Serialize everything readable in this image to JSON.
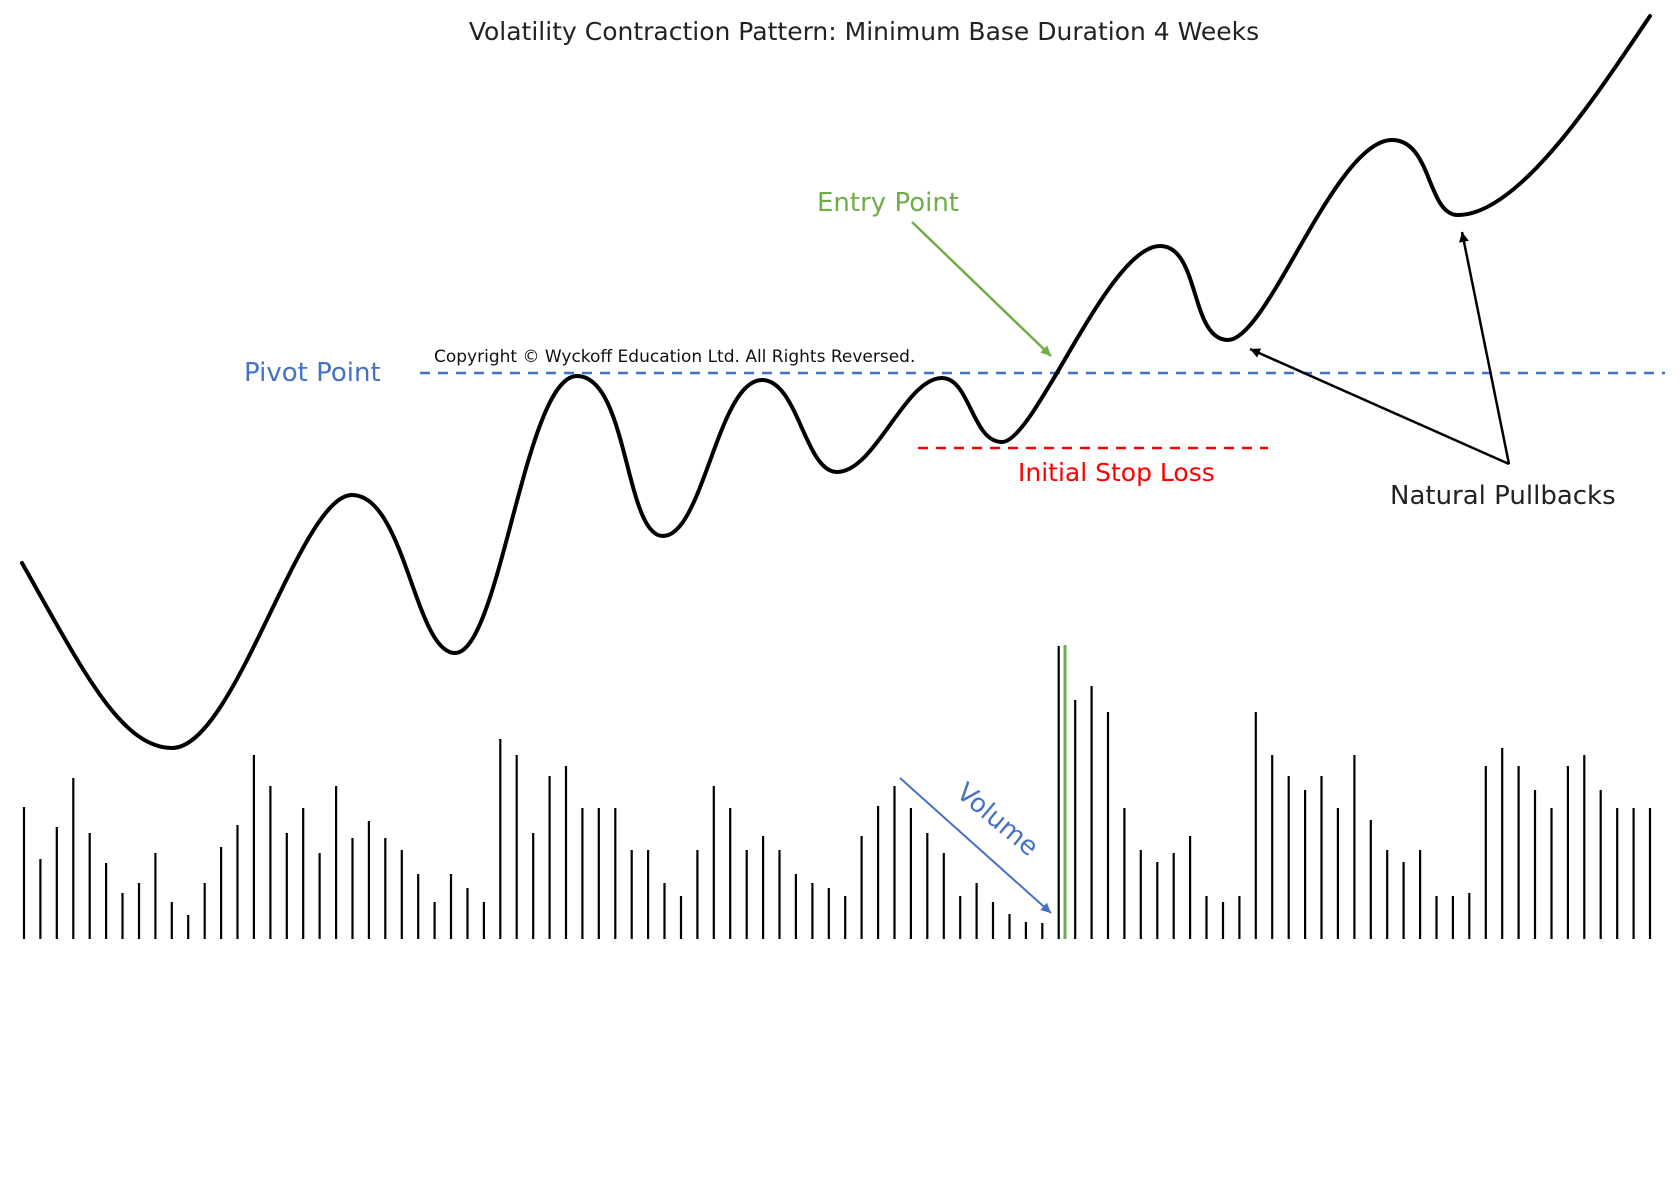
{
  "title": "Volatility Contraction Pattern: Minimum Base Duration 4 Weeks",
  "copyright": "Copyright © Wyckoff Education Ltd. All Rights Reversed.",
  "annotations": {
    "pivot_point": "Pivot Point",
    "entry_point": "Entry Point",
    "initial_stop_loss": "Initial Stop Loss",
    "natural_pullbacks": "Natural Pullbacks",
    "volume": "Volume"
  },
  "colors": {
    "pivot": "#4472c4",
    "entry": "#70ad47",
    "stop": "#ff0000",
    "price": "#000000",
    "volume_bars": "#000000",
    "text": "#222222"
  }
}
